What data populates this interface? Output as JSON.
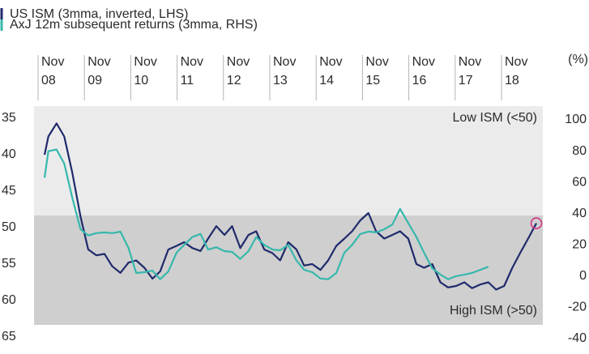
{
  "chart_data": {
    "type": "line",
    "legend": [
      {
        "name": "US ISM (3mma, inverted, LHS)",
        "color": "#1f2a6b"
      },
      {
        "name": "AxJ 12m subsequent returns (3mma, RHS)",
        "color": "#36b8ac"
      }
    ],
    "x_ticks": [
      {
        "month": "Nov",
        "year": "08"
      },
      {
        "month": "Nov",
        "year": "09"
      },
      {
        "month": "Nov",
        "year": "10"
      },
      {
        "month": "Nov",
        "year": "11"
      },
      {
        "month": "Nov",
        "year": "12"
      },
      {
        "month": "Nov",
        "year": "13"
      },
      {
        "month": "Nov",
        "year": "14"
      },
      {
        "month": "Nov",
        "year": "15"
      },
      {
        "month": "Nov",
        "year": "16"
      },
      {
        "month": "Nov",
        "year": "17"
      },
      {
        "month": "Nov",
        "year": "18"
      }
    ],
    "y_left": {
      "ticks": [
        "35",
        "40",
        "45",
        "50",
        "55",
        "60",
        "65"
      ],
      "range": [
        35,
        65
      ],
      "inverted": true
    },
    "y_right": {
      "unit": "(%)",
      "ticks": [
        "100",
        "80",
        "60",
        "40",
        "20",
        "0",
        "-20",
        "-40"
      ],
      "range": [
        -40,
        100
      ]
    },
    "bands": {
      "upper_label": "Low ISM (<50)",
      "lower_label": "High ISM (>50)",
      "upper_color": "#ebebeb",
      "lower_color": "#cfcfcf",
      "split_value": 50
    },
    "x_start": 2008.67,
    "x_end": 2018.92,
    "series": [
      {
        "name": "US ISM (3mma, inverted, LHS)",
        "color": "#1f2a6b",
        "axis": "left",
        "points": [
          [
            2008.67,
            40.0
          ],
          [
            2008.75,
            37.5
          ],
          [
            2008.92,
            35.7
          ],
          [
            2009.08,
            37.5
          ],
          [
            2009.25,
            42.5
          ],
          [
            2009.42,
            48.5
          ],
          [
            2009.58,
            53.0
          ],
          [
            2009.75,
            53.8
          ],
          [
            2009.92,
            53.6
          ],
          [
            2010.08,
            55.3
          ],
          [
            2010.25,
            56.2
          ],
          [
            2010.42,
            54.8
          ],
          [
            2010.58,
            54.5
          ],
          [
            2010.75,
            55.5
          ],
          [
            2010.92,
            57.0
          ],
          [
            2011.08,
            56.0
          ],
          [
            2011.25,
            53.0
          ],
          [
            2011.42,
            52.5
          ],
          [
            2011.58,
            52.0
          ],
          [
            2011.75,
            52.8
          ],
          [
            2011.92,
            53.2
          ],
          [
            2012.08,
            51.5
          ],
          [
            2012.25,
            49.8
          ],
          [
            2012.42,
            51.0
          ],
          [
            2012.58,
            49.8
          ],
          [
            2012.75,
            52.8
          ],
          [
            2012.92,
            51.0
          ],
          [
            2013.08,
            50.5
          ],
          [
            2013.25,
            53.0
          ],
          [
            2013.42,
            53.5
          ],
          [
            2013.58,
            54.5
          ],
          [
            2013.75,
            52.0
          ],
          [
            2013.92,
            53.0
          ],
          [
            2014.08,
            55.2
          ],
          [
            2014.25,
            55.0
          ],
          [
            2014.42,
            55.8
          ],
          [
            2014.58,
            54.5
          ],
          [
            2014.75,
            52.5
          ],
          [
            2014.92,
            51.5
          ],
          [
            2015.08,
            50.5
          ],
          [
            2015.25,
            49.0
          ],
          [
            2015.42,
            48.0
          ],
          [
            2015.58,
            50.5
          ],
          [
            2015.75,
            51.5
          ],
          [
            2015.92,
            51.0
          ],
          [
            2016.08,
            50.5
          ],
          [
            2016.25,
            51.5
          ],
          [
            2016.42,
            55.0
          ],
          [
            2016.58,
            55.5
          ],
          [
            2016.75,
            55.0
          ],
          [
            2016.92,
            57.5
          ],
          [
            2017.08,
            58.2
          ],
          [
            2017.25,
            58.0
          ],
          [
            2017.42,
            57.5
          ],
          [
            2017.58,
            58.3
          ],
          [
            2017.75,
            57.8
          ],
          [
            2017.92,
            57.5
          ],
          [
            2018.08,
            58.5
          ],
          [
            2018.25,
            58.0
          ],
          [
            2018.42,
            55.5
          ],
          [
            2018.58,
            53.5
          ],
          [
            2018.75,
            51.5
          ],
          [
            2018.92,
            49.4
          ]
        ]
      },
      {
        "name": "AxJ 12m subsequent returns (3mma, RHS)",
        "color": "#36b8ac",
        "axis": "right",
        "points": [
          [
            2008.67,
            63.0
          ],
          [
            2008.75,
            80.0
          ],
          [
            2008.92,
            81.0
          ],
          [
            2009.08,
            72.0
          ],
          [
            2009.25,
            50.0
          ],
          [
            2009.42,
            30.0
          ],
          [
            2009.58,
            26.0
          ],
          [
            2009.75,
            27.5
          ],
          [
            2009.92,
            28.0
          ],
          [
            2010.08,
            27.5
          ],
          [
            2010.25,
            28.5
          ],
          [
            2010.42,
            18.0
          ],
          [
            2010.58,
            2.0
          ],
          [
            2010.75,
            2.5
          ],
          [
            2010.92,
            3.5
          ],
          [
            2011.08,
            -2.0
          ],
          [
            2011.25,
            3.0
          ],
          [
            2011.42,
            15.0
          ],
          [
            2011.58,
            20.0
          ],
          [
            2011.75,
            25.0
          ],
          [
            2011.92,
            27.0
          ],
          [
            2012.08,
            17.0
          ],
          [
            2012.25,
            18.5
          ],
          [
            2012.42,
            16.0
          ],
          [
            2012.58,
            15.5
          ],
          [
            2012.75,
            11.0
          ],
          [
            2012.92,
            16.0
          ],
          [
            2013.08,
            25.0
          ],
          [
            2013.25,
            20.0
          ],
          [
            2013.42,
            17.0
          ],
          [
            2013.58,
            16.5
          ],
          [
            2013.75,
            20.0
          ],
          [
            2013.92,
            10.0
          ],
          [
            2014.08,
            4.0
          ],
          [
            2014.25,
            2.5
          ],
          [
            2014.42,
            -1.5
          ],
          [
            2014.58,
            -2.0
          ],
          [
            2014.75,
            2.0
          ],
          [
            2014.92,
            15.0
          ],
          [
            2015.08,
            20.0
          ],
          [
            2015.25,
            27.0
          ],
          [
            2015.42,
            28.5
          ],
          [
            2015.58,
            28.0
          ],
          [
            2015.75,
            30.0
          ],
          [
            2015.92,
            33.0
          ],
          [
            2016.08,
            43.0
          ],
          [
            2016.25,
            34.0
          ],
          [
            2016.42,
            25.0
          ],
          [
            2016.58,
            15.0
          ],
          [
            2016.75,
            5.0
          ],
          [
            2016.92,
            1.0
          ],
          [
            2017.08,
            -2.0
          ],
          [
            2017.25,
            0.0
          ],
          [
            2017.42,
            1.0
          ],
          [
            2017.58,
            2.0
          ],
          [
            2017.75,
            4.0
          ],
          [
            2017.92,
            6.0
          ]
        ]
      }
    ],
    "highlight_point": {
      "series": "US ISM (3mma, inverted, LHS)",
      "x": 2018.92,
      "y": 49.4,
      "color": "#d6338a"
    }
  }
}
